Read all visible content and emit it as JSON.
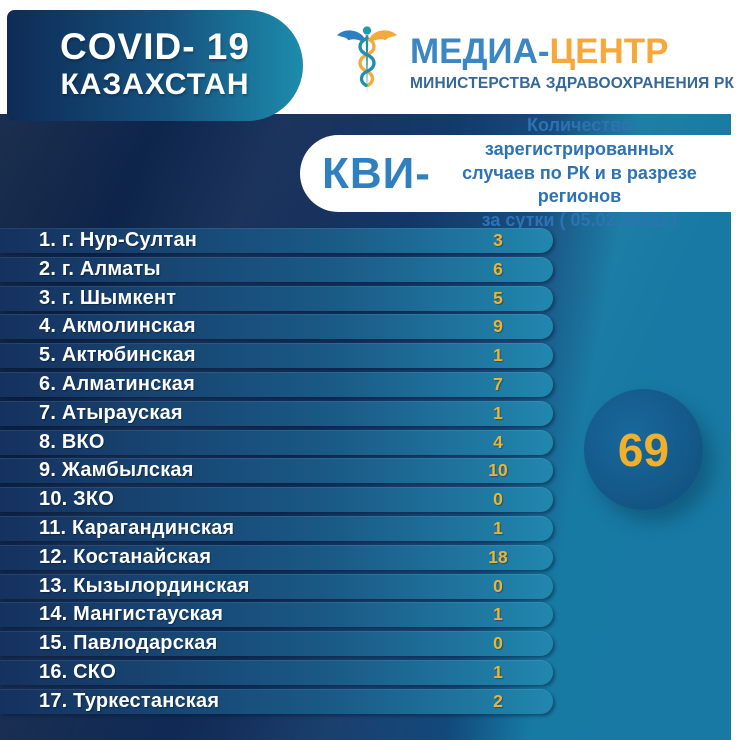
{
  "badge": {
    "line1": "COVID- 19",
    "line2": "КАЗАХСТАН"
  },
  "logo": {
    "icon": "caduceus-icon",
    "title_blue": "МЕДИА-",
    "title_yellow": "ЦЕНТР",
    "subtitle": "МИНИСТЕРСТВА ЗДРАВООХРАНЕНИЯ РК"
  },
  "header": {
    "kvi_label": "КВИ-",
    "description_lines": [
      "Количество зарегистрированных",
      "случаев по РК и в разрезе регионов",
      "за сутки ( 05.02.2021г.)"
    ]
  },
  "total": {
    "value": "69"
  },
  "regions": [
    {
      "label": "1. г. Нур-Султан",
      "value": "3"
    },
    {
      "label": "2. г. Алматы",
      "value": "6"
    },
    {
      "label": "3. г. Шымкент",
      "value": "5"
    },
    {
      "label": "4. Акмолинская",
      "value": "9"
    },
    {
      "label": "5. Актюбинская",
      "value": "1"
    },
    {
      "label": "6. Алматинская",
      "value": "7"
    },
    {
      "label": "7. Атырауская",
      "value": "1"
    },
    {
      "label": "8. ВКО",
      "value": "4"
    },
    {
      "label": "9. Жамбылская",
      "value": "10"
    },
    {
      "label": "10. ЗКО",
      "value": "0"
    },
    {
      "label": "11. Карагандинская",
      "value": "1"
    },
    {
      "label": "12. Костанайская",
      "value": "18"
    },
    {
      "label": "13. Кызылординская",
      "value": "0"
    },
    {
      "label": "14. Мангистауская",
      "value": "1"
    },
    {
      "label": "15. Павлодарская",
      "value": "0"
    },
    {
      "label": "16. СКО",
      "value": "1"
    },
    {
      "label": "17. Туркестанская",
      "value": "2"
    }
  ],
  "colors": {
    "navy": "#112c59",
    "teal": "#187aa4",
    "badge_teal": "#1d8cac",
    "accent_yellow": "#efb232",
    "logo_blue": "#3c87c1",
    "logo_orange": "#f4a93a",
    "kvi_blue": "#2e80c0"
  },
  "chart_data": {
    "type": "table",
    "title": "КВИ - Количество зарегистрированных случаев по РК и в разрезе регионов за сутки ( 05.02.2021г.)",
    "categories": [
      "г. Нур-Султан",
      "г. Алматы",
      "г. Шымкент",
      "Акмолинская",
      "Актюбинская",
      "Алматинская",
      "Атырауская",
      "ВКО",
      "Жамбылская",
      "ЗКО",
      "Карагандинская",
      "Костанайская",
      "Кызылординская",
      "Мангистауская",
      "Павлодарская",
      "СКО",
      "Туркестанская"
    ],
    "values": [
      3,
      6,
      5,
      9,
      1,
      7,
      1,
      4,
      10,
      0,
      1,
      18,
      0,
      1,
      0,
      1,
      2
    ],
    "total": 69,
    "date": "05.02.2021"
  }
}
